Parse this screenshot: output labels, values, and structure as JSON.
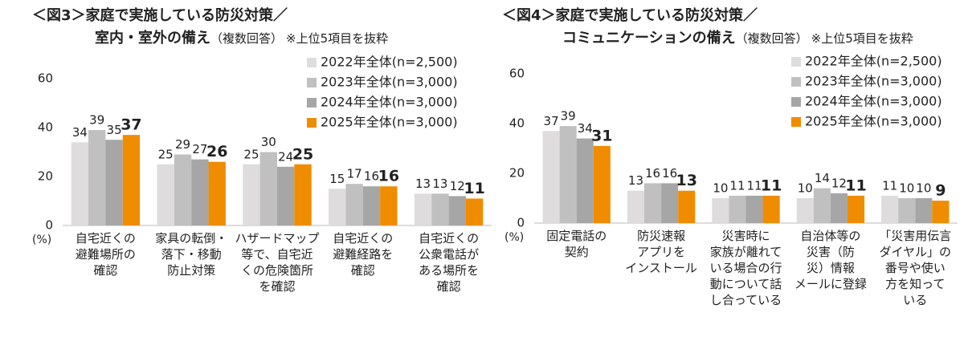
{
  "chart_data": [
    {
      "type": "bar",
      "title": "＜図3＞家庭で実施している防災対策／",
      "title_line2": "室内・室外の備え",
      "subtitle": "（複数回答）",
      "note": "※上位5項目を抜粋",
      "y_unit": "(%)",
      "categories": [
        "自宅近くの\n避難場所の\n確認",
        "家具の転倒・\n落下・移動\n防止対策",
        "ハザードマップ\n等で、自宅近\nくの危険箇所\nを確認",
        "自宅近くの\n避難経路を\n確認",
        "自宅近くの\n公衆電話が\nある場所を\n確認"
      ],
      "series": [
        {
          "name": "2022年全体(n=2,500)",
          "color": "#dedcdd",
          "values": [
            34,
            25,
            25,
            15,
            13
          ]
        },
        {
          "name": "2023年全体(n=3,000)",
          "color": "#c1c0c0",
          "values": [
            39,
            29,
            30,
            17,
            13
          ]
        },
        {
          "name": "2024年全体(n=3,000)",
          "color": "#a7a6a6",
          "values": [
            35,
            27,
            24,
            16,
            12
          ]
        },
        {
          "name": "2025年全体(n=3,000)",
          "color": "#f08c00",
          "values": [
            37,
            26,
            25,
            16,
            11
          ]
        }
      ],
      "ylim": [
        0,
        60
      ],
      "yticks": [
        0,
        20,
        40,
        60
      ],
      "grid": false,
      "legend": "upper right"
    },
    {
      "type": "bar",
      "title": "＜図4＞家庭で実施している防災対策／",
      "title_line2": "コミュニケーションの備え",
      "subtitle": "（複数回答）",
      "note": "※上位5項目を抜粋",
      "y_unit": "(%)",
      "categories": [
        "固定電話の\n契約",
        "防災速報\nアプリを\nインストール",
        "災害時に\n家族が離れて\nいる場合の行\n動について話\nし合っている",
        "自治体等の\n災害（防\n災）情報\nメールに登録",
        "「災害用伝言\nダイヤル」の\n番号や使い\n方を知って\nいる"
      ],
      "series": [
        {
          "name": "2022年全体(n=2,500)",
          "color": "#dedcdd",
          "values": [
            37,
            13,
            10,
            10,
            11
          ]
        },
        {
          "name": "2023年全体(n=3,000)",
          "color": "#c1c0c0",
          "values": [
            39,
            16,
            11,
            14,
            10
          ]
        },
        {
          "name": "2024年全体(n=3,000)",
          "color": "#a7a6a6",
          "values": [
            34,
            16,
            11,
            12,
            10
          ]
        },
        {
          "name": "2025年全体(n=3,000)",
          "color": "#f08c00",
          "values": [
            31,
            13,
            11,
            11,
            9
          ]
        }
      ],
      "ylim": [
        0,
        60
      ],
      "yticks": [
        0,
        20,
        40,
        60
      ],
      "grid": false,
      "legend": "upper right"
    }
  ]
}
